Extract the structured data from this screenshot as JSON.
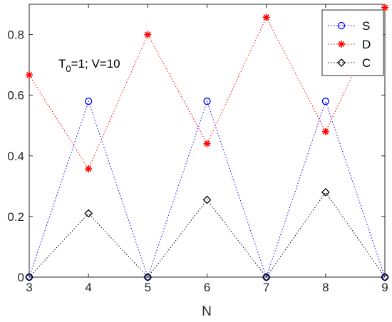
{
  "chart_data": {
    "type": "line",
    "title": "",
    "xlabel": "N",
    "ylabel": "",
    "x": [
      3,
      4,
      5,
      6,
      7,
      8,
      9
    ],
    "xlim": [
      3,
      9
    ],
    "ylim": [
      0,
      0.9
    ],
    "xticks": [
      "3",
      "4",
      "5",
      "6",
      "7",
      "8",
      "9"
    ],
    "yticks": [
      "0",
      "0.2",
      "0.4",
      "0.6",
      "0.8"
    ],
    "grid": false,
    "legend_position": "top-right",
    "series": [
      {
        "name": "S",
        "values": [
          0,
          0.58,
          0,
          0.58,
          0,
          0.58,
          0
        ],
        "color": "#0000ff",
        "marker": "circle",
        "line_style": "dotted"
      },
      {
        "name": "D",
        "values": [
          0.667,
          0.357,
          0.8,
          0.44,
          0.857,
          0.48,
          0.889
        ],
        "color": "#ff0000",
        "marker": "asterisk",
        "line_style": "dotted"
      },
      {
        "name": "C",
        "values": [
          0,
          0.21,
          0,
          0.255,
          0,
          0.28,
          0
        ],
        "color": "#000000",
        "marker": "diamond",
        "line_style": "dotted"
      }
    ],
    "annotation": {
      "prefix": "T",
      "subscript": "0",
      "suffix": "=1;  V=10"
    }
  }
}
